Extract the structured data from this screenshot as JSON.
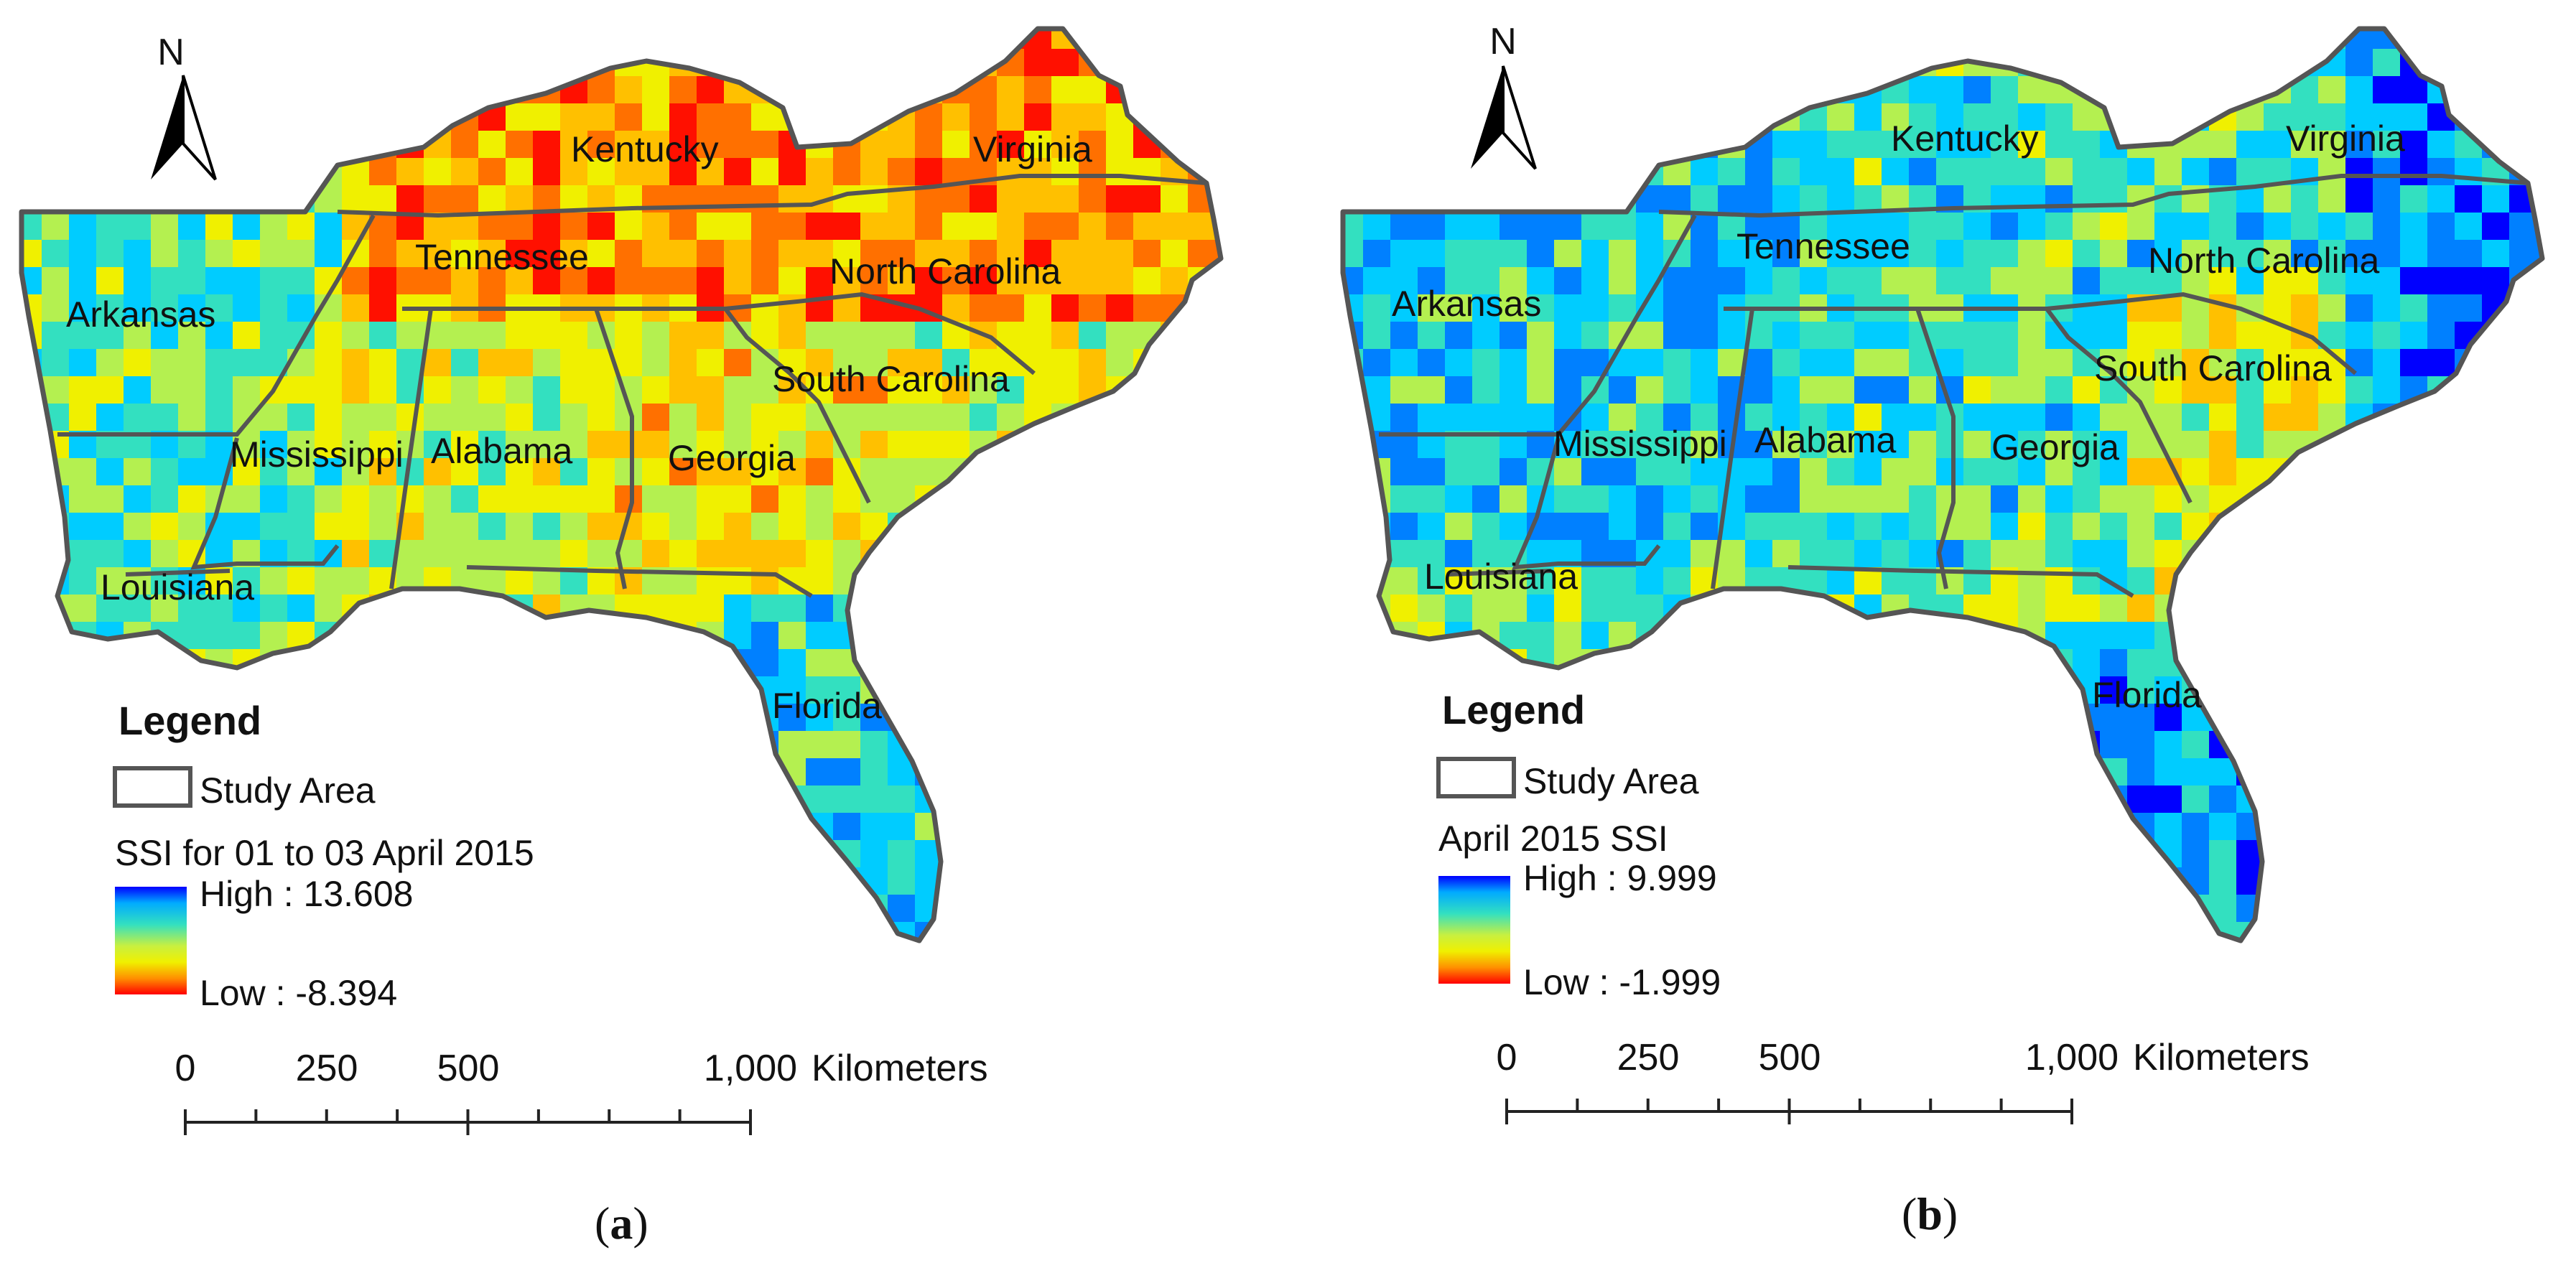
{
  "panels": [
    {
      "id": "a",
      "caption": "(a)",
      "caption_letter": "a",
      "north_label": "N",
      "states": [
        "Kentucky",
        "Virginia",
        "Tennessee",
        "North Carolina",
        "Arkansas",
        "South Carolina",
        "Mississippi",
        "Alabama",
        "Georgia",
        "Louisiana",
        "Florida"
      ],
      "legend": {
        "title": "Legend",
        "study_area": "Study Area",
        "layer": "SSI for 01 to 03 April 2015",
        "high": "High : 13.608",
        "low": "Low : -8.394"
      },
      "scalebar": {
        "ticks": [
          "0",
          "250",
          "500",
          "1,000"
        ],
        "unit": "Kilometers"
      },
      "palette_bias": "dry"
    },
    {
      "id": "b",
      "caption": "(b)",
      "caption_letter": "b",
      "north_label": "N",
      "states": [
        "Kentucky",
        "Virginia",
        "Tennessee",
        "North Carolina",
        "Arkansas",
        "South Carolina",
        "Mississippi",
        "Alabama",
        "Georgia",
        "Louisiana",
        "Florida"
      ],
      "legend": {
        "title": "Legend",
        "study_area": "Study Area",
        "layer": "April 2015 SSI",
        "high": "High : 9.999",
        "low": "Low : -1.999"
      },
      "scalebar": {
        "ticks": [
          "0",
          "250",
          "500",
          "1,000"
        ],
        "unit": "Kilometers"
      },
      "palette_bias": "wet"
    }
  ],
  "colors": {
    "ramp": [
      "#0000ff",
      "#0080ff",
      "#00ccff",
      "#33e0c0",
      "#b4f050",
      "#f0f000",
      "#ffc000",
      "#ff7000",
      "#ff1000"
    ],
    "boundary": "#555555"
  }
}
